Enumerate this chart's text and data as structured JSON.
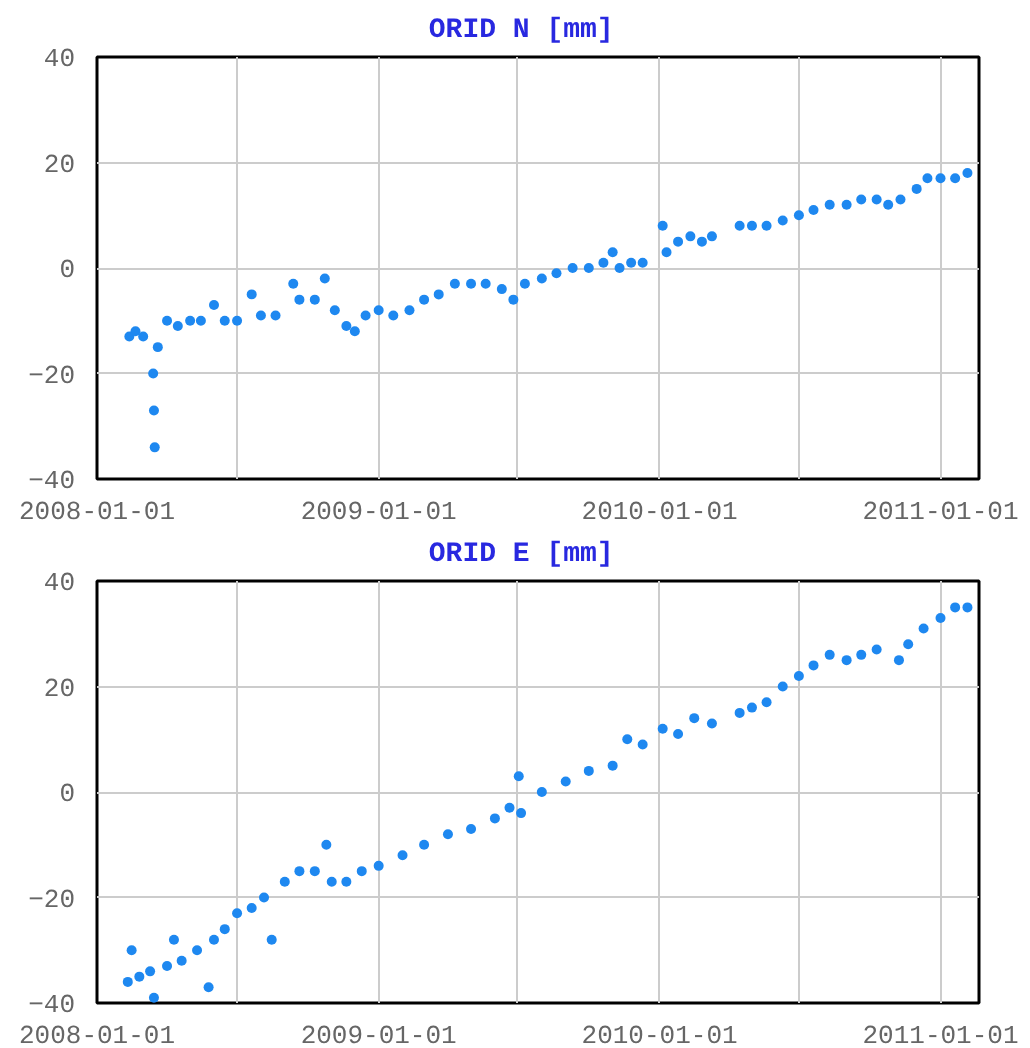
{
  "chart_data": [
    {
      "type": "scatter",
      "title": "ORID   N [mm]",
      "marker": "circle",
      "grid": true,
      "xlim": [
        "2008-01-01",
        "2011-02-20"
      ],
      "ylim": [
        -40,
        40
      ],
      "yticks": [
        -40,
        -20,
        0,
        20,
        40
      ],
      "xticks": [
        {
          "value": "2008-01-01",
          "label": "2008-01-01"
        },
        {
          "value": "2008-07-01",
          "label": null
        },
        {
          "value": "2009-01-01",
          "label": "2009-01-01"
        },
        {
          "value": "2009-07-01",
          "label": null
        },
        {
          "value": "2010-01-01",
          "label": "2010-01-01"
        },
        {
          "value": "2010-07-01",
          "label": null
        },
        {
          "value": "2011-01-01",
          "label": "2011-01-01"
        }
      ],
      "series": [
        {
          "color": "#1e88f0",
          "x": [
            "2008-02-12",
            "2008-02-20",
            "2008-03-01",
            "2008-03-14",
            "2008-03-15",
            "2008-03-16",
            "2008-03-20",
            "2008-04-01",
            "2008-04-15",
            "2008-05-01",
            "2008-05-15",
            "2008-06-01",
            "2008-06-15",
            "2008-07-01",
            "2008-07-20",
            "2008-08-01",
            "2008-08-20",
            "2008-09-12",
            "2008-09-20",
            "2008-10-10",
            "2008-10-23",
            "2008-11-05",
            "2008-11-20",
            "2008-12-01",
            "2008-12-15",
            "2009-01-01",
            "2009-01-20",
            "2009-02-10",
            "2009-03-01",
            "2009-03-20",
            "2009-04-10",
            "2009-05-01",
            "2009-05-20",
            "2009-06-10",
            "2009-06-25",
            "2009-07-10",
            "2009-08-01",
            "2009-08-20",
            "2009-09-10",
            "2009-10-01",
            "2009-10-20",
            "2009-11-01",
            "2009-11-10",
            "2009-11-25",
            "2009-12-10",
            "2010-01-05",
            "2010-01-10",
            "2010-01-25",
            "2010-02-10",
            "2010-02-25",
            "2010-03-10",
            "2010-04-15",
            "2010-05-01",
            "2010-05-20",
            "2010-06-10",
            "2010-07-01",
            "2010-07-20",
            "2010-08-10",
            "2010-09-01",
            "2010-09-20",
            "2010-10-10",
            "2010-10-25",
            "2010-11-10",
            "2010-12-01",
            "2010-12-15",
            "2011-01-01",
            "2011-01-20",
            "2011-02-05"
          ],
          "values": [
            -13,
            -12,
            -13,
            -20,
            -27,
            -34,
            -15,
            -10,
            -11,
            -10,
            -10,
            -7,
            -10,
            -10,
            -5,
            -9,
            -9,
            -3,
            -6,
            -6,
            -2,
            -8,
            -11,
            -12,
            -9,
            -8,
            -9,
            -8,
            -6,
            -5,
            -3,
            -3,
            -3,
            -4,
            -6,
            -3,
            -2,
            -1,
            0,
            0,
            1,
            3,
            0,
            1,
            1,
            8,
            3,
            5,
            6,
            5,
            6,
            8,
            8,
            8,
            9,
            10,
            11,
            12,
            12,
            13,
            13,
            12,
            13,
            15,
            17,
            17,
            17,
            18
          ]
        }
      ]
    },
    {
      "type": "scatter",
      "title": "ORID   E [mm]",
      "marker": "circle",
      "grid": true,
      "xlim": [
        "2008-01-01",
        "2011-02-20"
      ],
      "ylim": [
        -40,
        40
      ],
      "yticks": [
        -40,
        -20,
        0,
        20,
        40
      ],
      "xticks": [
        {
          "value": "2008-01-01",
          "label": "2008-01-01"
        },
        {
          "value": "2008-07-01",
          "label": null
        },
        {
          "value": "2009-01-01",
          "label": "2009-01-01"
        },
        {
          "value": "2009-07-01",
          "label": null
        },
        {
          "value": "2010-01-01",
          "label": "2010-01-01"
        },
        {
          "value": "2010-07-01",
          "label": null
        },
        {
          "value": "2011-01-01",
          "label": "2011-01-01"
        }
      ],
      "series": [
        {
          "color": "#1e88f0",
          "x": [
            "2008-02-10",
            "2008-02-15",
            "2008-02-25",
            "2008-03-10",
            "2008-03-15",
            "2008-04-01",
            "2008-04-10",
            "2008-04-20",
            "2008-05-10",
            "2008-05-25",
            "2008-06-01",
            "2008-06-15",
            "2008-07-01",
            "2008-07-20",
            "2008-08-05",
            "2008-08-15",
            "2008-09-01",
            "2008-09-20",
            "2008-10-10",
            "2008-10-25",
            "2008-11-01",
            "2008-11-20",
            "2008-12-10",
            "2009-01-01",
            "2009-02-01",
            "2009-03-01",
            "2009-04-01",
            "2009-05-01",
            "2009-06-01",
            "2009-06-20",
            "2009-07-02",
            "2009-07-05",
            "2009-08-01",
            "2009-09-01",
            "2009-10-01",
            "2009-11-01",
            "2009-11-20",
            "2009-12-10",
            "2010-01-05",
            "2010-01-25",
            "2010-02-15",
            "2010-03-10",
            "2010-04-15",
            "2010-05-01",
            "2010-05-20",
            "2010-06-10",
            "2010-07-01",
            "2010-07-20",
            "2010-08-10",
            "2010-09-01",
            "2010-09-20",
            "2010-10-10",
            "2010-11-08",
            "2010-11-20",
            "2010-12-10",
            "2011-01-01",
            "2011-01-20",
            "2011-02-05"
          ],
          "values": [
            -36,
            -30,
            -35,
            -34,
            -39,
            -33,
            -28,
            -32,
            -30,
            -37,
            -28,
            -26,
            -23,
            -22,
            -20,
            -28,
            -17,
            -15,
            -15,
            -10,
            -17,
            -17,
            -15,
            -14,
            -12,
            -10,
            -8,
            -7,
            -5,
            -3,
            3,
            -4,
            0,
            2,
            4,
            5,
            10,
            9,
            12,
            11,
            14,
            13,
            15,
            16,
            17,
            20,
            22,
            24,
            26,
            25,
            26,
            27,
            25,
            28,
            31,
            33,
            35,
            35
          ]
        }
      ]
    }
  ]
}
